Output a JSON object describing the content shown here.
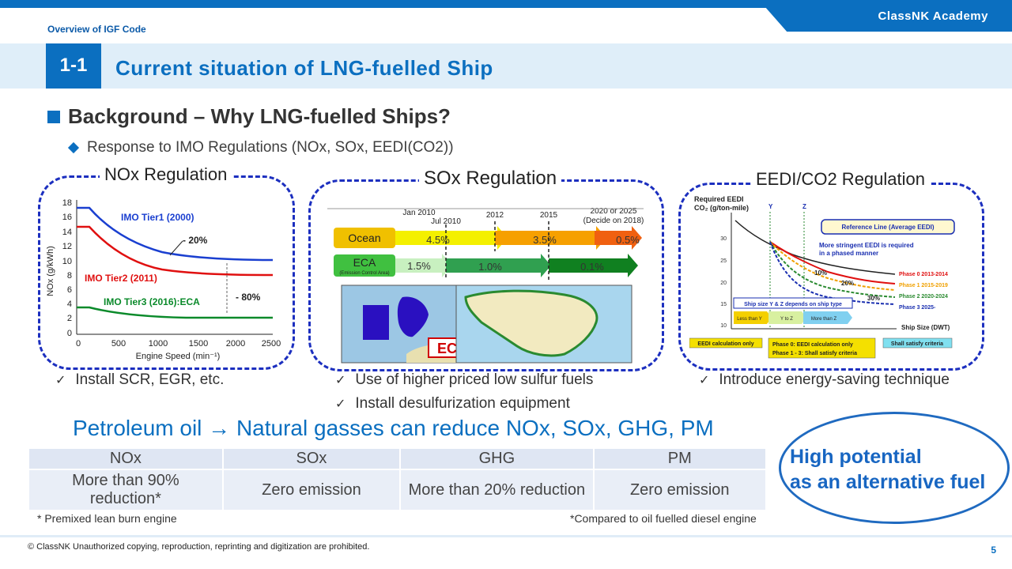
{
  "header": {
    "brand": "ClassNK Academy",
    "overview": "Overview of IGF Code",
    "section_number": "1-1",
    "title": "Current situation of LNG-fuelled Ship"
  },
  "background": {
    "heading": "Background – Why LNG-fuelled  Ships?",
    "sub": "Response to IMO Regulations (NOx, SOx, EEDI(CO2))"
  },
  "nox": {
    "title": "NOx Regulation",
    "check": "Install SCR, EGR, etc.",
    "ylabel": "NOx (g/kWh)",
    "xlabel": "Engine Speed (min⁻¹)",
    "yticks": [
      "18",
      "16",
      "14",
      "12",
      "10",
      "8",
      "6",
      "4",
      "2",
      "0"
    ],
    "xticks": [
      "0",
      "500",
      "1000",
      "1500",
      "2000",
      "2500"
    ],
    "tier1": "IMO Tier1 (2000)",
    "tier2": "IMO Tier2 (2011)",
    "tier3": "IMO Tier3 (2016):ECA",
    "minus20": "- 20%",
    "minus80": "- 80%"
  },
  "sox": {
    "title": "SOx Regulation",
    "check1": "Use of higher priced low sulfur fuels",
    "check2": "Install desulfurization equipment",
    "years": [
      "Jan 2010",
      "Jul 2010",
      "2012",
      "2015",
      "2020 or 2025",
      "(Decide on 2018)"
    ],
    "ocean": "Ocean",
    "eca": "ECA",
    "eca_sub": "(Emission Control Area)",
    "ocean_vals": [
      "4.5%",
      "3.5%",
      "0.5%"
    ],
    "eca_vals": [
      "1.5%",
      "1.0%",
      "0.1%"
    ],
    "map_label": "ECA"
  },
  "eedi": {
    "title": "EEDI/CO2 Regulation",
    "check": "Introduce energy-saving technique",
    "ylabel1": "Required EEDI",
    "ylabel2": "CO₂ (g/ton-mile)",
    "yticks": [
      "30",
      "25",
      "20",
      "15",
      "10"
    ],
    "y_mark": "Y",
    "z_mark": "Z",
    "ref_line": "Reference Line (Average EEDI)",
    "stringent1": "More stringent EEDI is required",
    "stringent2": "in a phased manner",
    "pct10": "10%",
    "pct20": "20%",
    "pct30": "30%",
    "phase0": "Phase 0 2013-2014",
    "phase1": "Phase 1 2015-2019",
    "phase2": "Phase 2 2020-2024",
    "phase3": "Phase 3 2025-",
    "yz_note": "Ship size Y & Z depends on ship type",
    "less_y": "Less than Y",
    "y_to_z": "Y to Z",
    "more_z": "More than Z",
    "ship_size": "Ship Size (DWT)",
    "calc_only": "EEDI calculation only",
    "phase_note1": "Phase 0: EEDI calculation only",
    "phase_note2": "Phase 1 - 3: Shall satisfy criteria",
    "shall": "Shall satisfy criteria"
  },
  "headline": "Petroleum oil → Natural gasses can reduce NOx, SOx, GHG, PM",
  "table": {
    "headers": [
      "NOx",
      "SOx",
      "GHG",
      "PM"
    ],
    "row": [
      "More than 90% reduction*",
      "Zero emission",
      "More than 20% reduction",
      "Zero emission"
    ]
  },
  "notes": {
    "left": "* Premixed lean burn engine",
    "right": "*Compared to oil fuelled diesel engine"
  },
  "callout": {
    "line1": "High potential",
    "line2": "as an alternative fuel"
  },
  "footer": {
    "copyright": "© ClassNK Unauthorized copying, reproduction, reprinting and digitization are prohibited.",
    "page": "5"
  },
  "colors": {
    "primary": "#0b6fc0",
    "panel_border": "#1c2fbf",
    "tier1": "#1a3fd0",
    "tier2": "#e01010",
    "tier3": "#0a8a2a"
  }
}
